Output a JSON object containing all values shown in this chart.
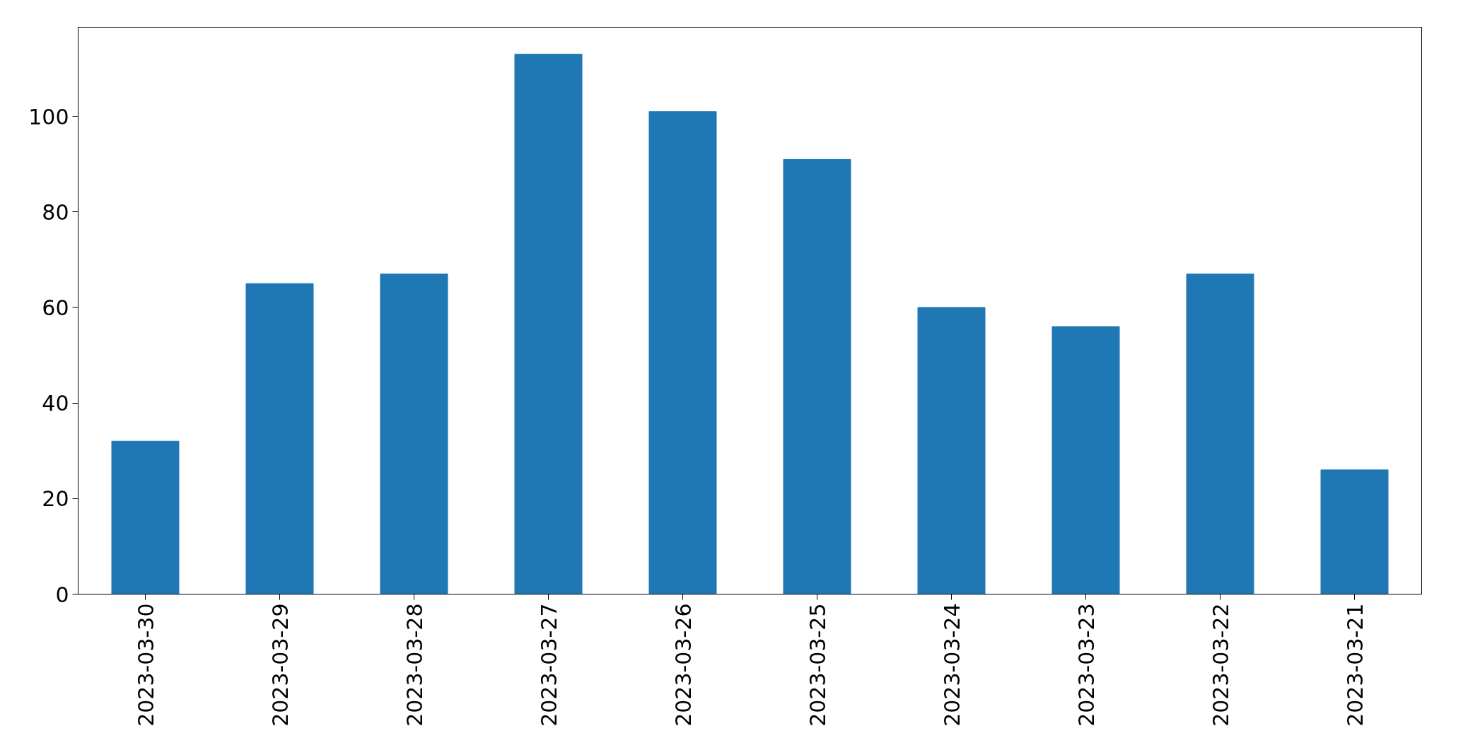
{
  "chart_data": {
    "type": "bar",
    "categories": [
      "2023-03-30",
      "2023-03-29",
      "2023-03-28",
      "2023-03-27",
      "2023-03-26",
      "2023-03-25",
      "2023-03-24",
      "2023-03-23",
      "2023-03-22",
      "2023-03-21"
    ],
    "values": [
      32,
      65,
      67,
      113,
      101,
      91,
      60,
      56,
      67,
      26
    ],
    "color": "#1f77b4",
    "ylim": [
      0,
      118.65
    ],
    "yticks": [
      0,
      20,
      40,
      60,
      80,
      100
    ],
    "grid": false
  }
}
